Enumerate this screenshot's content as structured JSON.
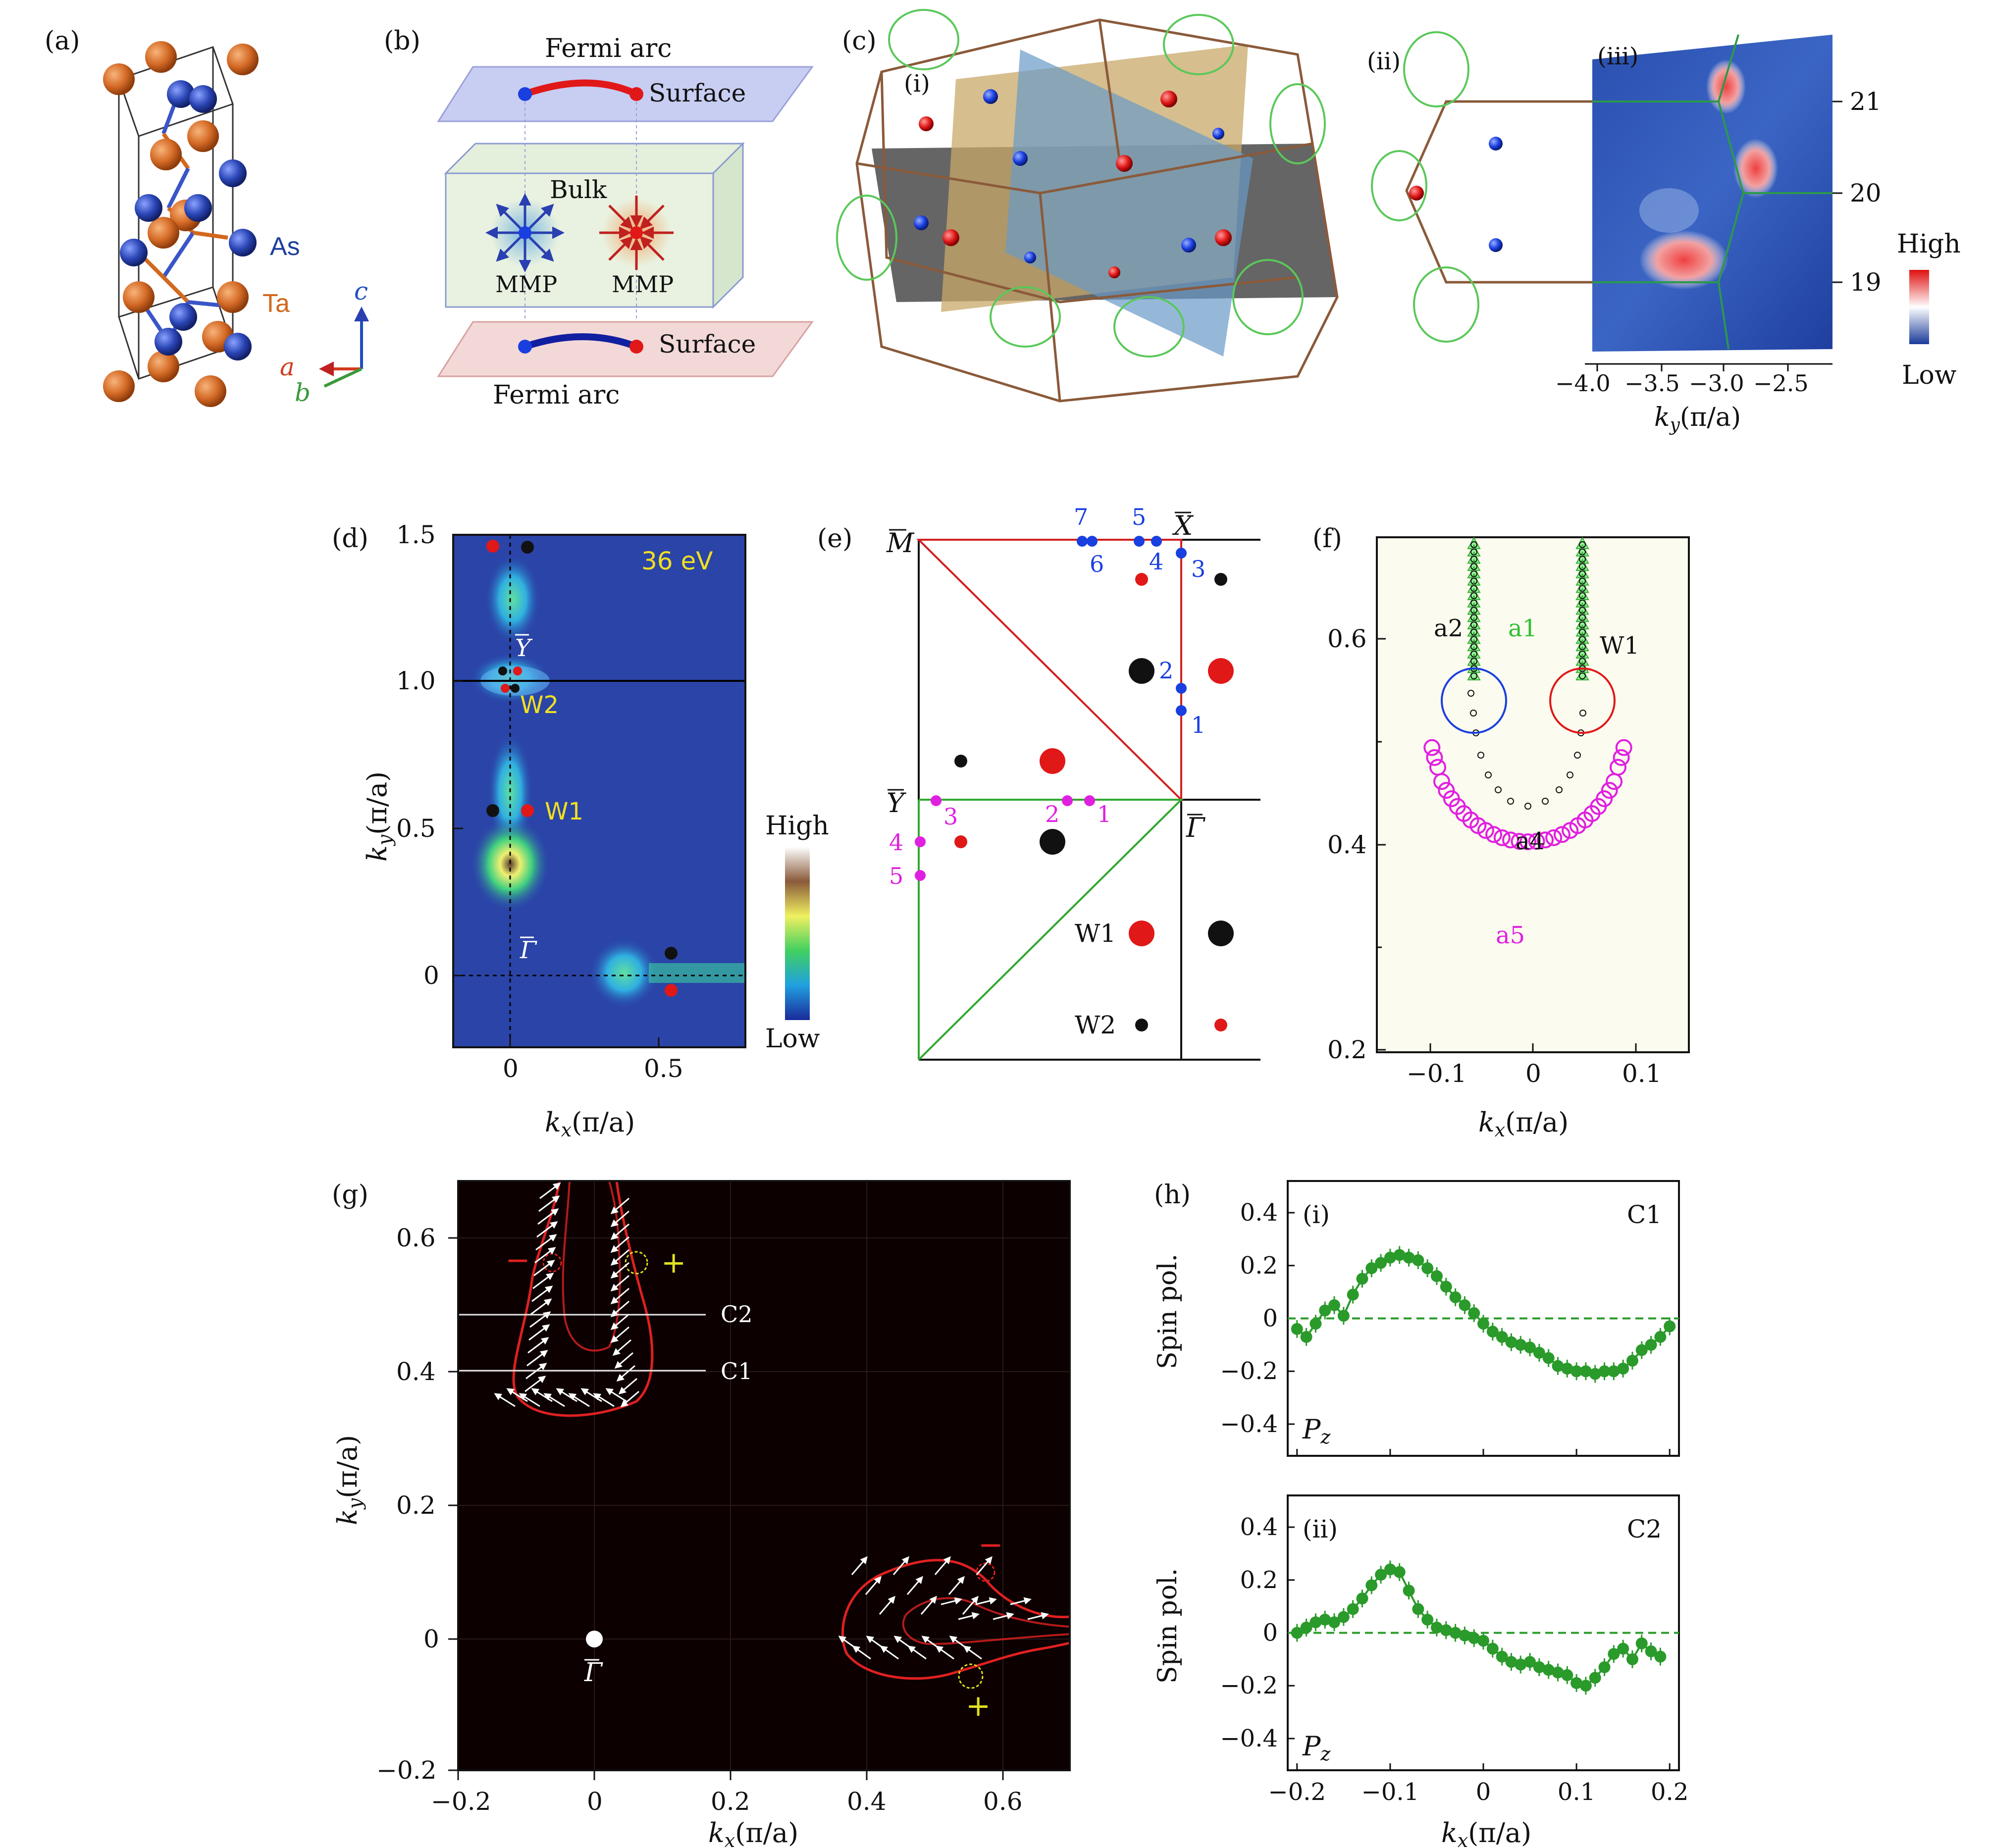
{
  "panels": {
    "a": {
      "label": "(a)",
      "atom_labels": [
        "As",
        "Ta"
      ],
      "axes": [
        "c",
        "a",
        "b"
      ],
      "colors": {
        "Ta": "#d2691e",
        "As": "#1f3f9f",
        "axis_c": "#1f4fbf",
        "axis_a": "#d23a1c",
        "axis_b": "#3a9a3a"
      }
    },
    "b": {
      "label": "(b)",
      "top_title": "Fermi arc",
      "top_surface": "Surface",
      "bulk": "Bulk",
      "mmp_left": "MMP",
      "mmp_right": "MMP",
      "bottom_surface": "Surface",
      "bottom_title": "Fermi arc"
    },
    "c": {
      "label": "(c)",
      "sub_i": "(i)",
      "sub_ii": "(ii)",
      "sub_iii": "(iii)",
      "yticks": [
        "21",
        "20",
        "19"
      ],
      "xticks": [
        "−4.0",
        "−3.5",
        "−3.0",
        "−2.5"
      ],
      "xlabel_main": "k",
      "xlabel_sub": "y",
      "xlabel_unit": "(π/a)",
      "colorbar_high": "High",
      "colorbar_low": "Low"
    },
    "d": {
      "label": "(d)",
      "energy": "36 eV",
      "ylabel_main": "k",
      "ylabel_sub": "y",
      "ylabel_unit": "(π/a)",
      "xlabel_main": "k",
      "xlabel_sub": "x",
      "xlabel_unit": "(π/a)",
      "yticks": [
        "1.5",
        "1.0",
        "0.5",
        "0"
      ],
      "xticks": [
        "0",
        "0.5"
      ],
      "point_labels": {
        "Y": "Y",
        "W2": "W2",
        "W1": "W1",
        "Gamma": "Γ"
      },
      "colorbar_high": "High",
      "colorbar_low": "Low"
    },
    "e": {
      "label": "(e)",
      "corner_labels": {
        "M": "M",
        "X": "X",
        "Y": "Y",
        "Gamma": "Γ"
      },
      "blue_numbers": [
        "7",
        "5",
        "6",
        "4",
        "3",
        "2",
        "1"
      ],
      "magenta_numbers": [
        "3",
        "2",
        "1",
        "4",
        "5"
      ],
      "legend": {
        "W1": "W1",
        "W2": "W2"
      }
    },
    "f": {
      "label": "(f)",
      "series_labels": {
        "a1": "a1",
        "a2": "a2",
        "a4": "a4",
        "a5": "a5",
        "W1": "W1"
      },
      "yticks": [
        "0.6",
        "0.4",
        "0.2"
      ],
      "xticks": [
        "−0.1",
        "0",
        "0.1"
      ],
      "xlabel_main": "k",
      "xlabel_sub": "x",
      "xlabel_unit": "(π/a)"
    },
    "g": {
      "label": "(g)",
      "cut_labels": [
        "C2",
        "C1"
      ],
      "signs": [
        "−",
        "+",
        "−",
        "+"
      ],
      "gamma": "Γ",
      "yticks": [
        "0.6",
        "0.4",
        "0.2",
        "0",
        "−0.2"
      ],
      "xticks": [
        "−0.2",
        "0",
        "0.2",
        "0.4",
        "0.6"
      ],
      "ylabel_main": "k",
      "ylabel_sub": "y",
      "ylabel_unit": "(π/a)",
      "xlabel_main": "k",
      "xlabel_sub": "x",
      "xlabel_unit": "(π/a)"
    },
    "h": {
      "label": "(h)",
      "sub_i": "(i)",
      "sub_ii": "(ii)",
      "ylabel": "Spin pol.",
      "component_main": "P",
      "component_sub": "z",
      "yticks": [
        "0.4",
        "0.2",
        "0",
        "−0.2",
        "−0.4"
      ],
      "xticks": [
        "−0.2",
        "−0.1",
        "0",
        "0.1",
        "0.2"
      ],
      "xlabel_main": "k",
      "xlabel_sub": "x",
      "xlabel_unit": "(π/a)"
    }
  },
  "chart_data": [
    {
      "type": "scatter",
      "panel": "h(i)",
      "series": [
        {
          "name": "C1",
          "x": [
            -0.2,
            -0.19,
            -0.18,
            -0.17,
            -0.16,
            -0.15,
            -0.14,
            -0.13,
            -0.12,
            -0.11,
            -0.1,
            -0.09,
            -0.08,
            -0.07,
            -0.06,
            -0.05,
            -0.04,
            -0.03,
            -0.02,
            -0.01,
            0,
            0.01,
            0.02,
            0.03,
            0.04,
            0.05,
            0.06,
            0.07,
            0.08,
            0.09,
            0.1,
            0.11,
            0.12,
            0.13,
            0.14,
            0.15,
            0.16,
            0.17,
            0.18,
            0.19,
            0.2
          ],
          "y": [
            -0.04,
            -0.07,
            -0.02,
            0.03,
            0.05,
            0.01,
            0.09,
            0.15,
            0.19,
            0.21,
            0.23,
            0.24,
            0.23,
            0.22,
            0.19,
            0.16,
            0.12,
            0.08,
            0.05,
            0.02,
            -0.02,
            -0.05,
            -0.07,
            -0.09,
            -0.1,
            -0.11,
            -0.13,
            -0.15,
            -0.18,
            -0.19,
            -0.2,
            -0.2,
            -0.21,
            -0.2,
            -0.2,
            -0.19,
            -0.16,
            -0.12,
            -0.1,
            -0.07,
            -0.03
          ]
        }
      ],
      "xlim": [
        -0.21,
        0.21
      ],
      "ylim": [
        -0.52,
        0.52
      ],
      "xlabel": "kx(π/a)",
      "ylabel": "Spin pol.",
      "reference_line": 0
    },
    {
      "type": "scatter",
      "panel": "h(ii)",
      "series": [
        {
          "name": "C2",
          "x": [
            -0.2,
            -0.19,
            -0.18,
            -0.17,
            -0.16,
            -0.15,
            -0.14,
            -0.13,
            -0.12,
            -0.11,
            -0.1,
            -0.09,
            -0.08,
            -0.07,
            -0.06,
            -0.05,
            -0.04,
            -0.03,
            -0.02,
            -0.01,
            0,
            0.01,
            0.02,
            0.03,
            0.04,
            0.05,
            0.06,
            0.07,
            0.08,
            0.09,
            0.1,
            0.11,
            0.12,
            0.13,
            0.14,
            0.15,
            0.16,
            0.17,
            0.18,
            0.19
          ],
          "y": [
            0.0,
            0.02,
            0.04,
            0.05,
            0.04,
            0.06,
            0.09,
            0.13,
            0.18,
            0.22,
            0.24,
            0.23,
            0.16,
            0.09,
            0.05,
            0.02,
            0.01,
            0.0,
            -0.01,
            -0.02,
            -0.03,
            -0.06,
            -0.09,
            -0.11,
            -0.12,
            -0.11,
            -0.13,
            -0.14,
            -0.15,
            -0.16,
            -0.19,
            -0.2,
            -0.17,
            -0.13,
            -0.08,
            -0.06,
            -0.1,
            -0.04,
            -0.07,
            -0.09
          ]
        }
      ],
      "xlim": [
        -0.21,
        0.21
      ],
      "ylim": [
        -0.52,
        0.52
      ],
      "xlabel": "kx(π/a)",
      "ylabel": "Spin pol.",
      "reference_line": 0
    }
  ]
}
